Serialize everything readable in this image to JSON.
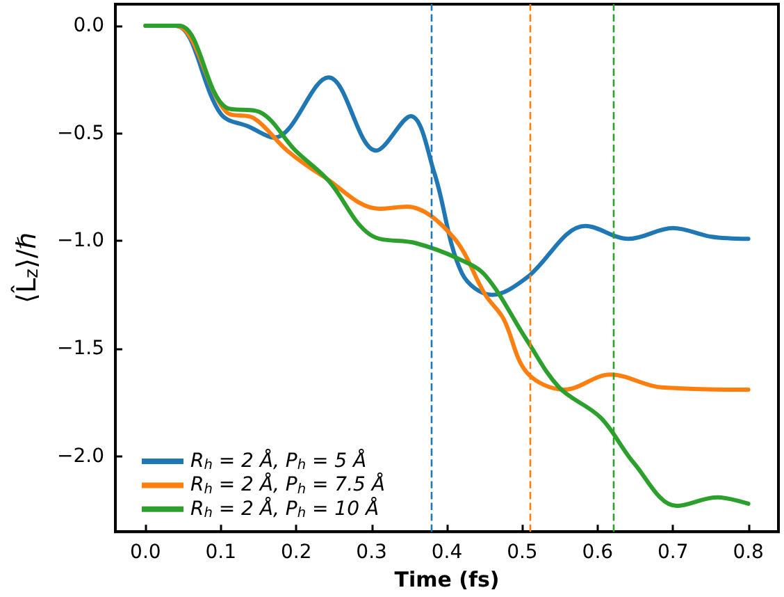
{
  "chart_data": {
    "type": "line",
    "xlabel": "Time (fs)",
    "ylabel": "⟨L̂$_{z}$⟩/ℏ",
    "xlim": [
      -0.04,
      0.84
    ],
    "ylim": [
      -2.35,
      0.1
    ],
    "xticks": [
      {
        "value": 0,
        "label": "0.0"
      },
      {
        "value": 0.1,
        "label": "0.1"
      },
      {
        "value": 0.2,
        "label": "0.2"
      },
      {
        "value": 0.3,
        "label": "0.3"
      },
      {
        "value": 0.4,
        "label": "0.4"
      },
      {
        "value": 0.5,
        "label": "0.5"
      },
      {
        "value": 0.6,
        "label": "0.6"
      },
      {
        "value": 0.7,
        "label": "0.7"
      },
      {
        "value": 0.8,
        "label": "0.8"
      }
    ],
    "yticks": [
      {
        "value": 0,
        "label": "0.0"
      },
      {
        "value": -0.5,
        "label": "−0.5"
      },
      {
        "value": -1,
        "label": "−1.0"
      },
      {
        "value": -1.5,
        "label": "−1.5"
      },
      {
        "value": -2,
        "label": "−2.0"
      }
    ],
    "grid": false,
    "legend": "bottom left",
    "marker": "none",
    "line_style": "solid",
    "series": [
      {
        "name": "R$_{h}$ = 2 Å, P$_{h}$ = 5 Å",
        "color": "#1f77b4",
        "x": [
          0,
          0.04,
          0.1,
          0.138,
          0.171,
          0.243,
          0.306,
          0.352,
          0.383,
          0.42,
          0.46,
          0.506,
          0.584,
          0.641,
          0.7,
          0.751,
          0.8
        ],
        "values": [
          0,
          0,
          -0.41,
          -0.47,
          -0.52,
          -0.24,
          -0.58,
          -0.42,
          -0.68,
          -1.15,
          -1.25,
          -1.17,
          -0.93,
          -0.99,
          -0.94,
          -0.98,
          -0.99
        ]
      },
      {
        "name": "R$_{h}$ = 2 Å, P$_{h}$ = 7.5 Å",
        "color": "#ff7f0e",
        "x": [
          0,
          0.04,
          0.107,
          0.144,
          0.188,
          0.236,
          0.31,
          0.347,
          0.408,
          0.451,
          0.475,
          0.506,
          0.556,
          0.617,
          0.685,
          0.8
        ],
        "values": [
          0,
          0,
          -0.4,
          -0.43,
          -0.58,
          -0.7,
          -0.85,
          -0.84,
          -0.98,
          -1.25,
          -1.36,
          -1.61,
          -1.69,
          -1.62,
          -1.68,
          -1.69
        ]
      },
      {
        "name": "R$_{h}$ = 2 Å, P$_{h}$ = 10 Å",
        "color": "#2ca02c",
        "x": [
          0,
          0.045,
          0.107,
          0.151,
          0.199,
          0.243,
          0.298,
          0.359,
          0.414,
          0.451,
          0.506,
          0.549,
          0.604,
          0.648,
          0.705,
          0.759,
          0.8
        ],
        "values": [
          0,
          0,
          -0.38,
          -0.4,
          -0.58,
          -0.72,
          -0.97,
          -1.01,
          -1.08,
          -1.16,
          -1.46,
          -1.68,
          -1.82,
          -2.03,
          -2.23,
          -2.19,
          -2.22
        ]
      }
    ],
    "ref_lines": [
      {
        "axis": "x",
        "value": 0.376,
        "color": "#1f77b4",
        "line_style": "dashed"
      },
      {
        "axis": "x",
        "value": 0.51,
        "color": "#ff7f0e",
        "line_style": "dashed"
      },
      {
        "axis": "x",
        "value": 0.621,
        "color": "#2ca02c",
        "line_style": "dashed"
      }
    ]
  }
}
